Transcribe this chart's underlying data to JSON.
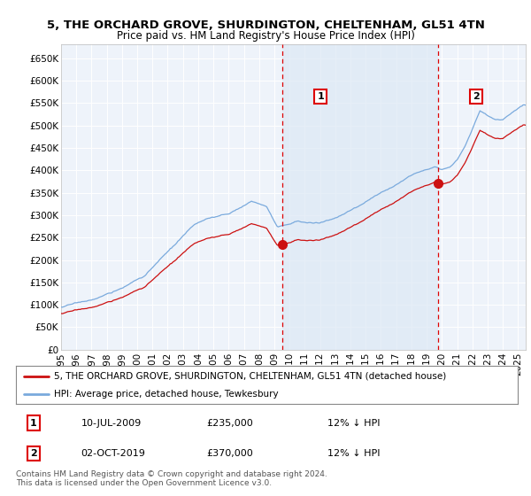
{
  "title": "5, THE ORCHARD GROVE, SHURDINGTON, CHELTENHAM, GL51 4TN",
  "subtitle": "Price paid vs. HM Land Registry's House Price Index (HPI)",
  "ylabel_ticks": [
    "£0",
    "£50K",
    "£100K",
    "£150K",
    "£200K",
    "£250K",
    "£300K",
    "£350K",
    "£400K",
    "£450K",
    "£500K",
    "£550K",
    "£600K",
    "£650K"
  ],
  "ytick_values": [
    0,
    50000,
    100000,
    150000,
    200000,
    250000,
    300000,
    350000,
    400000,
    450000,
    500000,
    550000,
    600000,
    650000
  ],
  "ylim": [
    0,
    680000
  ],
  "xlim_start": 1995.0,
  "xlim_end": 2025.5,
  "xtick_years": [
    1995,
    1996,
    1997,
    1998,
    1999,
    2000,
    2001,
    2002,
    2003,
    2004,
    2005,
    2006,
    2007,
    2008,
    2009,
    2010,
    2011,
    2012,
    2013,
    2014,
    2015,
    2016,
    2017,
    2018,
    2019,
    2020,
    2021,
    2022,
    2023,
    2024,
    2025
  ],
  "sale1_x": 2009.53,
  "sale1_y": 235000,
  "sale1_label": "1",
  "sale2_x": 2019.75,
  "sale2_y": 370000,
  "sale2_label": "2",
  "vline1_x": 2009.53,
  "vline2_x": 2019.75,
  "hpi_color": "#7aaadd",
  "property_color": "#cc1111",
  "vline_color": "#dd0000",
  "shade_color": "#dce8f5",
  "background_color": "#ffffff",
  "plot_bg_color": "#eef3fa",
  "legend_label1": "5, THE ORCHARD GROVE, SHURDINGTON, CHELTENHAM, GL51 4TN (detached house)",
  "legend_label2": "HPI: Average price, detached house, Tewkesbury",
  "table_row1": [
    "1",
    "10-JUL-2009",
    "£235,000",
    "12% ↓ HPI"
  ],
  "table_row2": [
    "2",
    "02-OCT-2019",
    "£370,000",
    "12% ↓ HPI"
  ],
  "footer": "Contains HM Land Registry data © Crown copyright and database right 2024.\nThis data is licensed under the Open Government Licence v3.0.",
  "title_fontsize": 9.5,
  "subtitle_fontsize": 8.5,
  "tick_fontsize": 7.5,
  "legend_fontsize": 7.5
}
